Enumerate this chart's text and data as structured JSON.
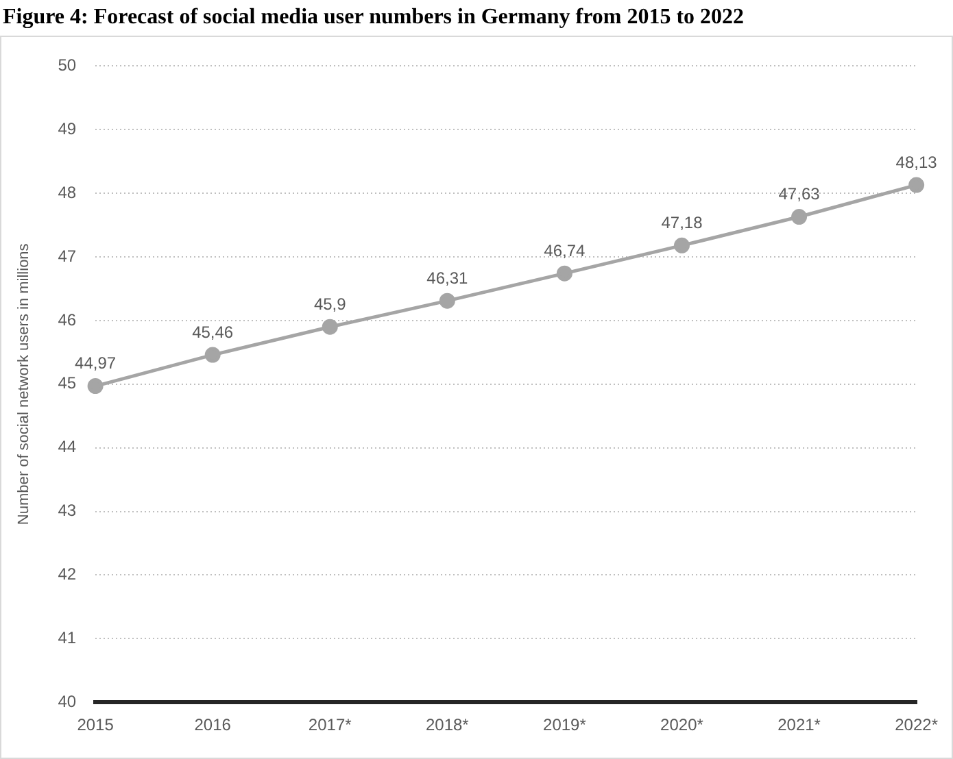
{
  "chart_data": {
    "type": "line",
    "title": "Figure 4: Forecast of social media user numbers in Germany from 2015 to 2022",
    "ylabel": "Number of social network users in millions",
    "categories": [
      "2015",
      "2016",
      "2017*",
      "2018*",
      "2019*",
      "2020*",
      "2021*",
      "2022*"
    ],
    "series": [
      {
        "color": "#a5a5a5",
        "values": [
          44.97,
          45.46,
          45.9,
          46.31,
          46.74,
          47.18,
          47.63,
          48.13
        ],
        "value_labels": [
          "44,97",
          "45,46",
          "45,9",
          "46,31",
          "46,74",
          "47,18",
          "47,63",
          "48,13"
        ]
      }
    ],
    "ylim": [
      40,
      50
    ],
    "yticks": [
      40,
      41,
      42,
      43,
      44,
      45,
      46,
      47,
      48,
      49,
      50
    ],
    "grid": "y",
    "legend": false,
    "marker": "circle",
    "line_style": "solid"
  }
}
